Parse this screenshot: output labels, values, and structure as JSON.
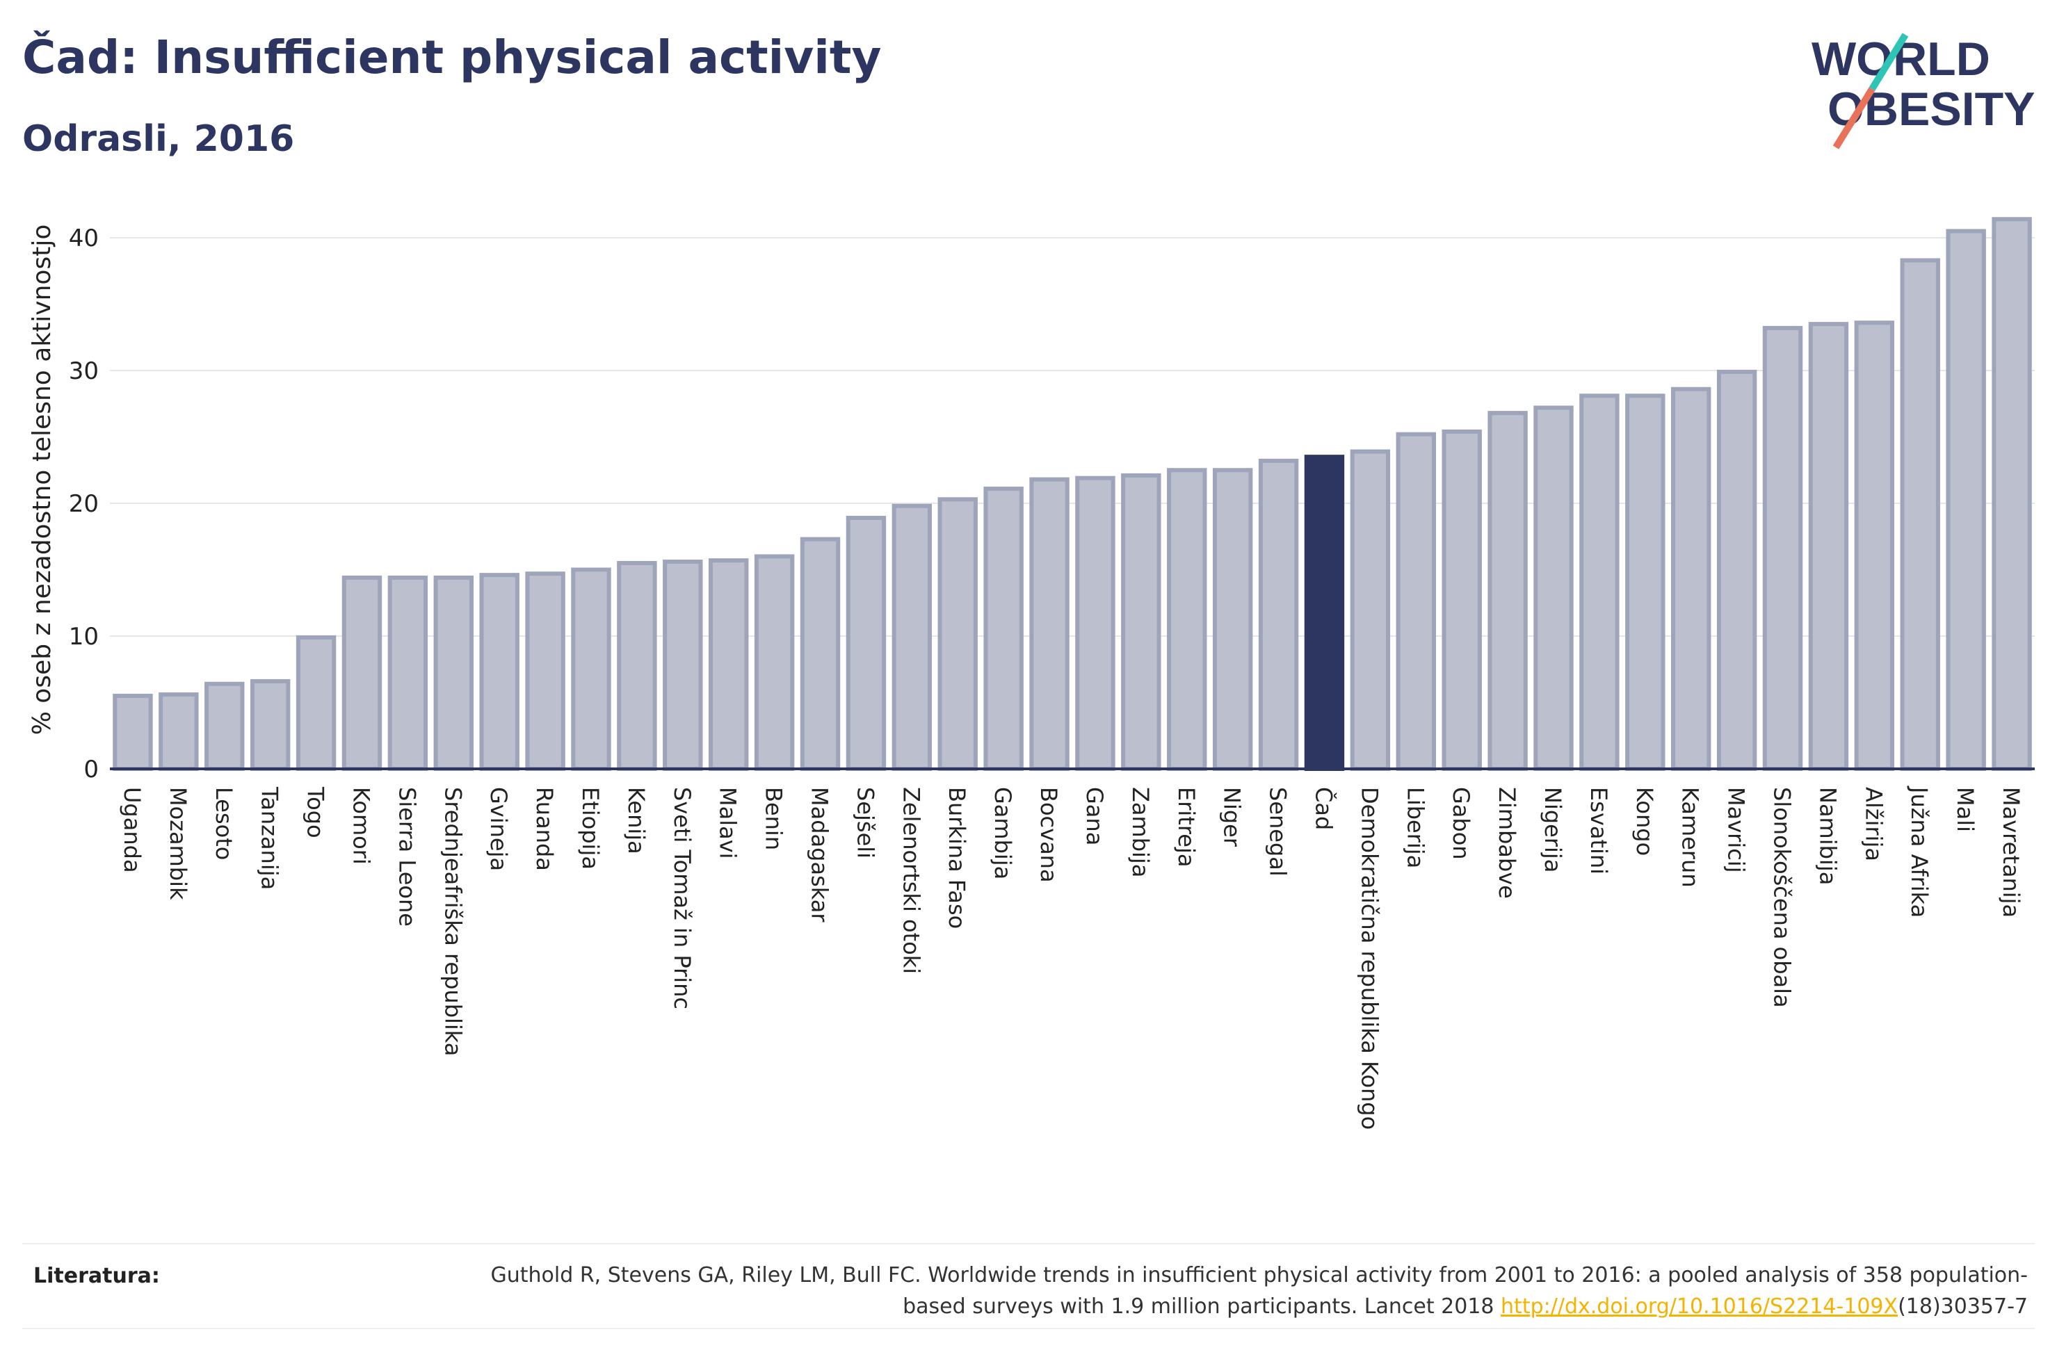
{
  "header": {
    "title": "Čad: Insufficient physical activity",
    "subtitle": "Odrasli, 2016"
  },
  "logo": {
    "line1": "WORLD",
    "line2": "OBESITY",
    "colors": {
      "text": "#2d3561",
      "slash_teal": "#2ec4b6",
      "slash_coral": "#e8735a"
    }
  },
  "colors": {
    "bar_fill": "#bcc0ce",
    "bar_stroke": "#9ea4ba",
    "highlight": "#2d3561",
    "axis": "#2d3561",
    "grid": "#e6e6e6"
  },
  "chart_data": {
    "type": "bar",
    "ylabel": "% oseb z nezadostno telesno aktivnostjo",
    "ylim": [
      0,
      43
    ],
    "yticks": [
      0,
      10,
      20,
      30,
      40
    ],
    "grid": true,
    "highlight": "Čad",
    "categories": [
      "Uganda",
      "Mozambik",
      "Lesoto",
      "Tanzanija",
      "Togo",
      "Komori",
      "Sierra Leone",
      "Srednjeafriška republika",
      "Gvineja",
      "Ruanda",
      "Etiopija",
      "Kenija",
      "Sveti Tomaž in Princ",
      "Malavi",
      "Benin",
      "Madagaskar",
      "Sejšeli",
      "Zelenortski otoki",
      "Burkina Faso",
      "Gambija",
      "Bocvana",
      "Gana",
      "Zambija",
      "Eritreja",
      "Niger",
      "Senegal",
      "Čad",
      "Demokratična republika Kongo",
      "Liberija",
      "Gabon",
      "Zimbabve",
      "Nigerija",
      "Esvatini",
      "Kongo",
      "Kamerun",
      "Mavricij",
      "Slonokoščena obala",
      "Namibija",
      "Alžirija",
      "Južna Afrika",
      "Mali",
      "Mavretanija"
    ],
    "values": [
      5.5,
      5.6,
      6.4,
      6.6,
      9.9,
      14.4,
      14.4,
      14.4,
      14.6,
      14.7,
      15.0,
      15.5,
      15.6,
      15.7,
      16.0,
      17.3,
      18.9,
      19.8,
      20.3,
      21.1,
      21.8,
      21.9,
      22.1,
      22.5,
      22.5,
      23.2,
      23.5,
      23.9,
      25.2,
      25.4,
      26.8,
      27.2,
      28.1,
      28.1,
      28.6,
      29.9,
      33.2,
      33.5,
      33.6,
      38.3,
      40.5,
      41.4
    ]
  },
  "references": {
    "label": "Literatura:",
    "text_before_link": "Guthold R, Stevens GA, Riley LM, Bull FC. Worldwide trends in insufficient physical activity from 2001 to 2016: a pooled analysis of 358 population-based surveys with 1.9 million participants. Lancet 2018 ",
    "link": "http://dx.doi.org/10.1016/S2214-109X",
    "text_after_link": "(18)30357-7"
  }
}
